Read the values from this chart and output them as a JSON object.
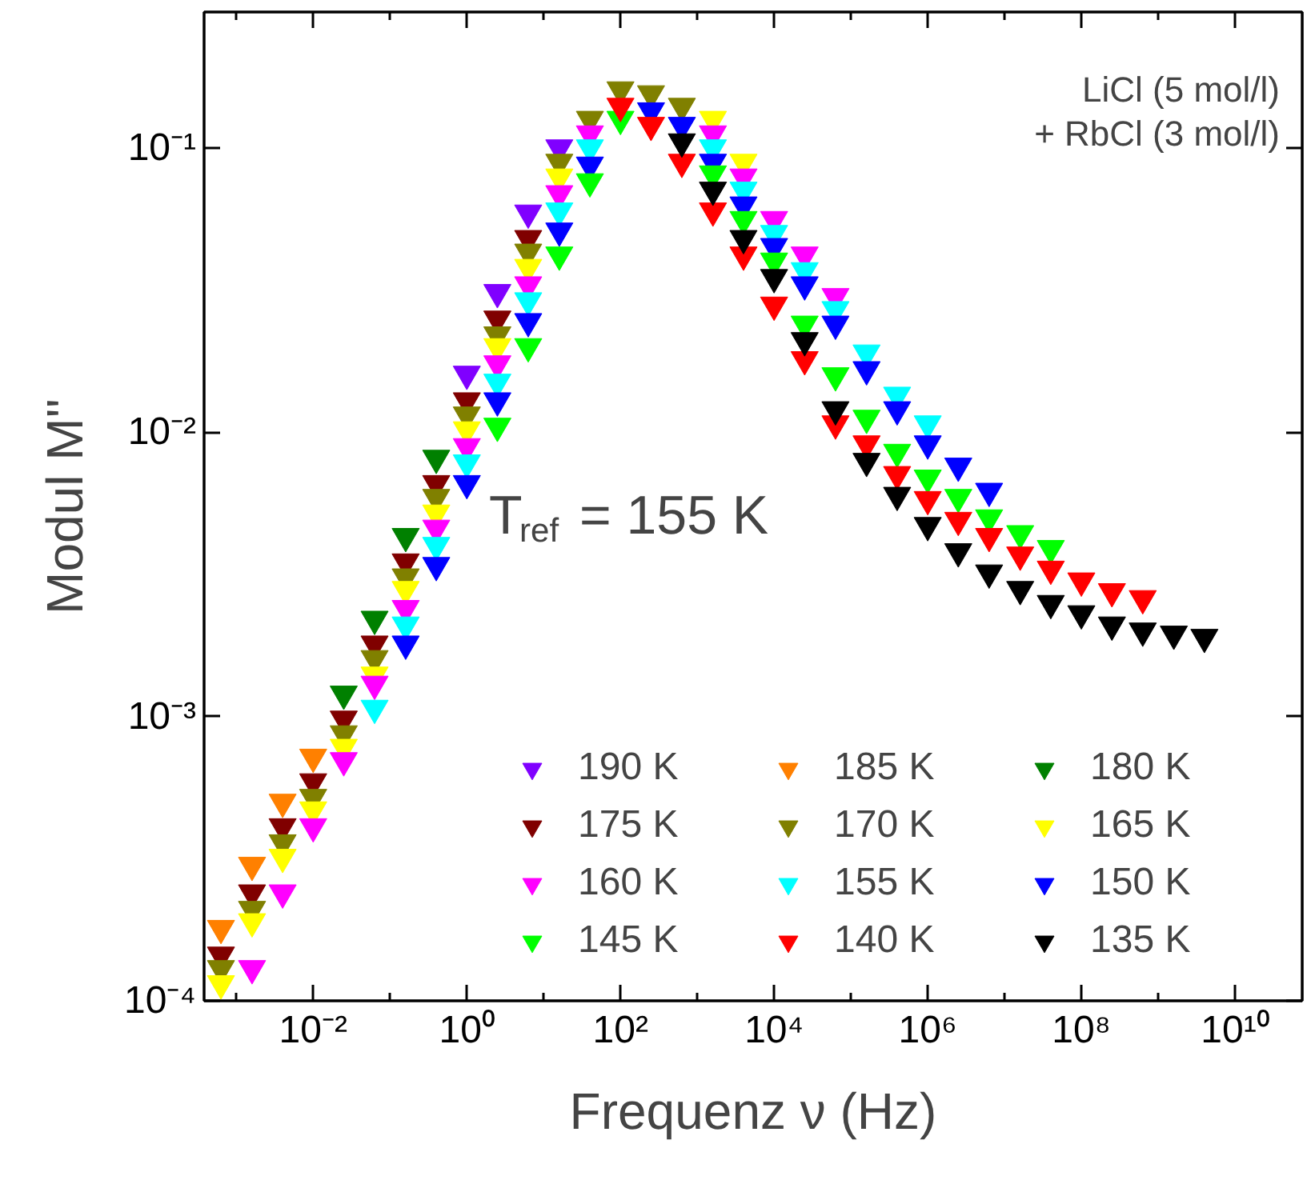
{
  "chart_data": {
    "type": "scatter",
    "xlabel": "Frequenz ν (Hz)",
    "ylabel": "Modul M''",
    "log": "xy",
    "grid": false,
    "legend": "bottom right",
    "marker": "triangle",
    "xlim": [
      0.00038,
      75000000000.0
    ],
    "ylim": [
      0.0001,
      0.3
    ],
    "xticks": [
      {
        "value": 0.001,
        "label": null
      },
      {
        "value": 0.01,
        "label": "10⁻²"
      },
      {
        "value": 0.1,
        "label": null
      },
      {
        "value": 1,
        "label": "10⁰"
      },
      {
        "value": 10,
        "label": null
      },
      {
        "value": 100,
        "label": "10²"
      },
      {
        "value": 1000,
        "label": null
      },
      {
        "value": 10000,
        "label": "10⁴"
      },
      {
        "value": 100000,
        "label": null
      },
      {
        "value": 1000000,
        "label": "10⁶"
      },
      {
        "value": 10000000,
        "label": null
      },
      {
        "value": 100000000,
        "label": "10⁸"
      },
      {
        "value": 1000000000,
        "label": null
      },
      {
        "value": 10000000000,
        "label": "10¹⁰"
      }
    ],
    "yticks": [
      {
        "value": 0.0001,
        "label": "10⁻⁴"
      },
      {
        "value": 0.001,
        "label": "10⁻³"
      },
      {
        "value": 0.01,
        "label": "10⁻²"
      },
      {
        "value": 0.1,
        "label": "10⁻¹"
      }
    ],
    "annotations": [
      "LiCl (5 mol/l)\n+ RbCl (3 mol/l)",
      "T$_{ref}$ = 155 K"
    ],
    "x": [
      0.00063,
      0.0016,
      0.004,
      0.01,
      0.025,
      0.063,
      0.16,
      0.4,
      1,
      2.5,
      6.3,
      16,
      40,
      100,
      250,
      630,
      1600,
      4000,
      10000.0,
      25000.0,
      63000.0,
      160000.0,
      400000.0,
      1000000.0,
      2500000.0,
      6300000.0,
      16000000.0,
      40000000.0,
      100000000.0,
      250000000.0,
      630000000.0,
      1600000000.0,
      4000000000.0
    ],
    "series": [
      {
        "name": "190 K",
        "color": "#8000ff",
        "values": [
          null,
          null,
          null,
          null,
          null,
          null,
          null,
          null,
          0.016,
          0.031,
          0.059,
          0.1,
          null,
          null,
          null,
          null,
          null,
          null,
          null,
          null,
          null,
          null,
          null,
          null,
          null,
          null,
          null,
          null,
          null,
          null,
          null,
          null,
          null
        ]
      },
      {
        "name": "185 K",
        "color": "#ff8000",
        "values": [
          0.00018,
          0.0003,
          0.0005,
          0.00072,
          null,
          null,
          null,
          null,
          null,
          null,
          null,
          null,
          null,
          null,
          null,
          null,
          null,
          null,
          null,
          null,
          null,
          null,
          null,
          null,
          null,
          null,
          null,
          null,
          null,
          null,
          null,
          null,
          null
        ]
      },
      {
        "name": "180 K",
        "color": "#008000",
        "values": [
          null,
          null,
          null,
          null,
          0.0012,
          0.0022,
          0.0043,
          0.0081,
          null,
          null,
          null,
          null,
          null,
          null,
          null,
          null,
          null,
          null,
          null,
          null,
          null,
          null,
          null,
          null,
          null,
          null,
          null,
          null,
          null,
          null,
          null,
          null,
          null
        ]
      },
      {
        "name": "175 K",
        "color": "#800000",
        "values": [
          0.000145,
          0.00024,
          0.00041,
          0.00059,
          0.00098,
          0.0018,
          0.0035,
          0.0066,
          0.0129,
          0.025,
          0.048,
          null,
          null,
          null,
          null,
          null,
          null,
          null,
          null,
          null,
          null,
          null,
          null,
          null,
          null,
          null,
          null,
          null,
          null,
          null,
          null,
          null,
          null
        ]
      },
      {
        "name": "170 K",
        "color": "#808000",
        "values": [
          0.00013,
          0.00021,
          0.00036,
          0.00052,
          0.00087,
          0.0016,
          0.0031,
          0.0059,
          0.0115,
          0.022,
          0.043,
          0.089,
          0.126,
          0.16,
          0.155,
          0.14,
          null,
          null,
          null,
          null,
          null,
          null,
          null,
          null,
          null,
          null,
          null,
          null,
          null,
          null,
          null,
          null,
          null
        ]
      },
      {
        "name": "165 K",
        "color": "#ffff00",
        "values": [
          0.000115,
          0.00019,
          0.00032,
          0.00047,
          0.00078,
          0.0014,
          0.0028,
          0.0052,
          0.0102,
          0.02,
          0.038,
          0.079,
          null,
          null,
          null,
          null,
          0.126,
          0.089,
          null,
          null,
          null,
          null,
          null,
          null,
          null,
          null,
          null,
          null,
          null,
          null,
          null,
          null,
          null
        ]
      },
      {
        "name": "160 K",
        "color": "#ff00ff",
        "values": [
          null,
          0.00013,
          0.00024,
          0.00041,
          0.0007,
          0.0013,
          0.0024,
          0.0046,
          0.0089,
          0.0174,
          0.033,
          0.069,
          0.112,
          null,
          null,
          null,
          0.112,
          0.079,
          0.056,
          0.042,
          0.03,
          null,
          null,
          null,
          null,
          null,
          null,
          null,
          null,
          null,
          null,
          null,
          null
        ]
      },
      {
        "name": "155 K",
        "color": "#00ffff",
        "values": [
          null,
          null,
          null,
          null,
          null,
          0.00107,
          0.0021,
          0.004,
          0.0078,
          0.015,
          0.029,
          0.06,
          0.1,
          null,
          null,
          null,
          0.1,
          0.071,
          0.05,
          0.037,
          0.027,
          0.019,
          0.0135,
          0.0107,
          null,
          null,
          null,
          null,
          null,
          null,
          null,
          null,
          null
        ]
      },
      {
        "name": "150 K",
        "color": "#0000ff",
        "values": [
          null,
          null,
          null,
          null,
          null,
          null,
          0.0018,
          0.0034,
          0.0066,
          0.0129,
          0.0245,
          0.051,
          0.087,
          null,
          0.135,
          0.12,
          0.089,
          0.063,
          0.045,
          0.033,
          0.024,
          0.0166,
          0.012,
          0.0091,
          0.0076,
          0.0062,
          null,
          null,
          null,
          null,
          null,
          null,
          null
        ]
      },
      {
        "name": "145 K",
        "color": "#00ff00",
        "values": [
          null,
          null,
          null,
          null,
          null,
          null,
          null,
          null,
          null,
          0.0105,
          0.02,
          0.042,
          0.076,
          0.126,
          null,
          null,
          0.081,
          0.056,
          0.04,
          0.024,
          0.0158,
          0.0112,
          0.0085,
          0.0069,
          0.0059,
          0.005,
          0.0044,
          0.0039,
          null,
          null,
          null,
          null,
          null
        ]
      },
      {
        "name": "140 K",
        "color": "#ff0000",
        "values": [
          null,
          null,
          null,
          null,
          null,
          null,
          null,
          null,
          null,
          null,
          null,
          null,
          null,
          0.14,
          0.12,
          0.089,
          0.06,
          0.042,
          0.028,
          0.018,
          0.0107,
          0.0091,
          0.0071,
          0.0058,
          0.0049,
          0.0043,
          0.0037,
          0.0033,
          0.003,
          0.00275,
          0.0026,
          null,
          null
        ]
      },
      {
        "name": "135 K",
        "color": "#000000",
        "values": [
          null,
          null,
          null,
          null,
          null,
          null,
          null,
          null,
          null,
          null,
          null,
          null,
          null,
          null,
          null,
          0.105,
          0.071,
          0.048,
          0.035,
          0.021,
          0.012,
          0.0079,
          0.006,
          0.0047,
          0.0038,
          0.0032,
          0.0028,
          0.0025,
          0.0023,
          0.0021,
          0.002,
          0.00195,
          0.0019
        ]
      }
    ]
  }
}
